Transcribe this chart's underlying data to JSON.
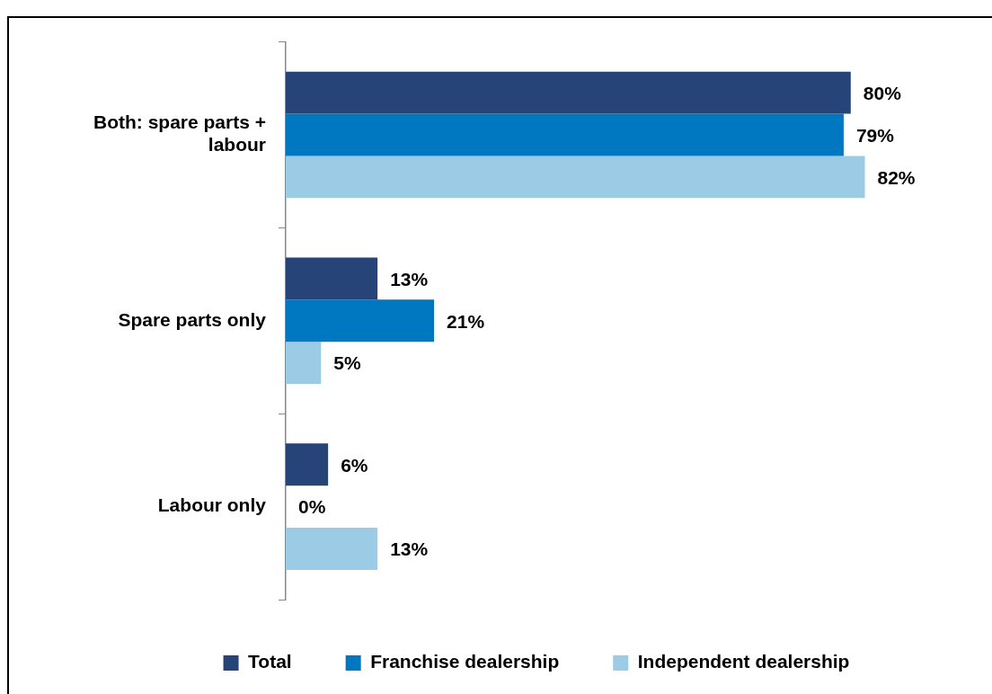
{
  "chart_data": {
    "type": "bar",
    "orientation": "horizontal",
    "categories": [
      "Both: spare parts + labour",
      "Spare parts only",
      "Labour only"
    ],
    "series": [
      {
        "name": "Total",
        "color": "#264478",
        "values": [
          80,
          13,
          6
        ],
        "value_labels": [
          "80%",
          "13%",
          "6%"
        ]
      },
      {
        "name": "Franchise dealership",
        "color": "#0078c1",
        "values": [
          79,
          21,
          0
        ],
        "value_labels": [
          "79%",
          "21%",
          "0%"
        ]
      },
      {
        "name": "Independent dealership",
        "color": "#9ccbe6",
        "values": [
          82,
          5,
          13
        ],
        "value_labels": [
          "82%",
          "5%",
          "13%"
        ]
      }
    ],
    "xlim": [
      0,
      100
    ],
    "tick_labels": "y",
    "legend": "bottom"
  }
}
